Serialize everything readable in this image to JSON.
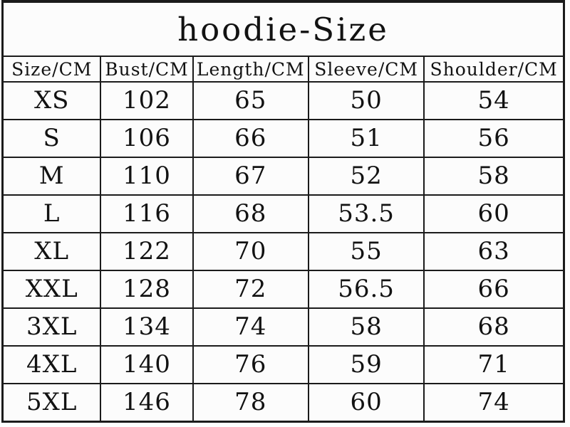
{
  "title": "hoodie-Size",
  "colors": {
    "border": "#1b1b1b",
    "background": "#fcfcfc",
    "text": "#121212"
  },
  "chart_data": {
    "type": "table",
    "title": "hoodie-Size",
    "unit": "CM",
    "columns": [
      "Size/CM",
      "Bust/CM",
      "Length/CM",
      "Sleeve/CM",
      "Shoulder/CM"
    ],
    "rows": [
      [
        "XS",
        "102",
        "65",
        "50",
        "54"
      ],
      [
        "S",
        "106",
        "66",
        "51",
        "56"
      ],
      [
        "M",
        "110",
        "67",
        "52",
        "58"
      ],
      [
        "L",
        "116",
        "68",
        "53.5",
        "60"
      ],
      [
        "XL",
        "122",
        "70",
        "55",
        "63"
      ],
      [
        "XXL",
        "128",
        "72",
        "56.5",
        "66"
      ],
      [
        "3XL",
        "134",
        "74",
        "58",
        "68"
      ],
      [
        "4XL",
        "140",
        "76",
        "59",
        "71"
      ],
      [
        "5XL",
        "146",
        "78",
        "60",
        "74"
      ]
    ]
  }
}
